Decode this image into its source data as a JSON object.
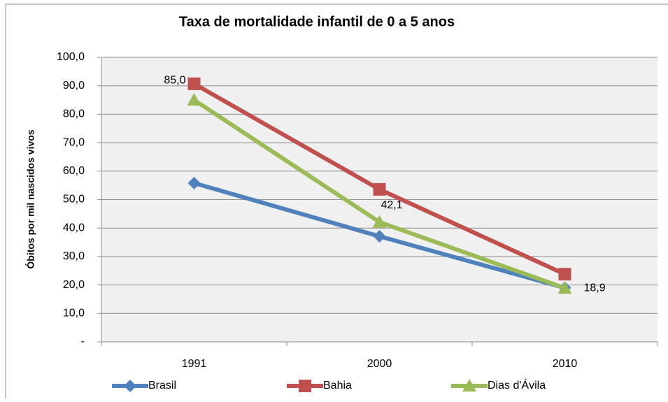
{
  "chart_data": {
    "type": "line",
    "title": "Taxa de mortalidade infantil de 0 a 5 anos",
    "y_label": "Óbitos por mil nascidos vivos",
    "categories": [
      "1991",
      "2000",
      "2010"
    ],
    "series": [
      {
        "name": "Brasil",
        "color": "#4f81bd",
        "marker": "diamond",
        "values": [
          55.8,
          37.1,
          19.0
        ]
      },
      {
        "name": "Bahia",
        "color": "#c0504d",
        "marker": "square",
        "values": [
          90.7,
          53.6,
          23.8
        ]
      },
      {
        "name": "Dias d'Ávila",
        "color": "#9bbb59",
        "marker": "triangle",
        "values": [
          85.0,
          42.1,
          18.9
        ],
        "value_labels": [
          "85,0",
          "42,1",
          "18,9"
        ]
      }
    ],
    "ylim": [
      0,
      100
    ],
    "yticks": [
      {
        "value": 0,
        "label": "-"
      },
      {
        "value": 10,
        "label": "10,0"
      },
      {
        "value": 20,
        "label": "20,0"
      },
      {
        "value": 30,
        "label": "30,0"
      },
      {
        "value": 40,
        "label": "40,0"
      },
      {
        "value": 50,
        "label": "50,0"
      },
      {
        "value": 60,
        "label": "60,0"
      },
      {
        "value": 70,
        "label": "70,0"
      },
      {
        "value": 80,
        "label": "80,0"
      },
      {
        "value": 90,
        "label": "90,0"
      },
      {
        "value": 100,
        "label": "100,0"
      }
    ],
    "grid": true,
    "legend": "bottom"
  }
}
